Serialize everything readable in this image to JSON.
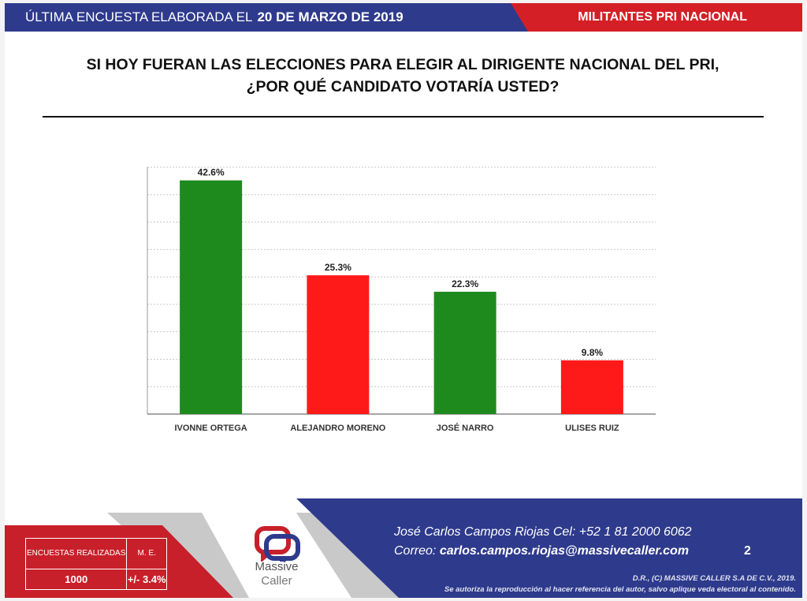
{
  "header": {
    "left_text": "ÚLTIMA ENCUESTA ELABORADA EL",
    "date": "20 DE MARZO DE 2019",
    "right_text": "MILITANTES PRI NACIONAL",
    "colors": {
      "blue": "#2e3a8c",
      "red": "#d41f26"
    }
  },
  "question": {
    "line1": "SI HOY FUERAN LAS ELECCIONES PARA ELEGIR AL DIRIGENTE NACIONAL DEL PRI,",
    "line2": "¿POR QUÉ CANDIDATO VOTARÍA USTED?"
  },
  "chart_data": {
    "type": "bar",
    "categories": [
      "IVONNE ORTEGA",
      "ALEJANDRO MORENO",
      "JOSÉ NARRO",
      "ULISES RUIZ"
    ],
    "values": [
      42.6,
      25.3,
      22.3,
      9.8
    ],
    "value_labels": [
      "42.6%",
      "25.3%",
      "22.3%",
      "9.8%"
    ],
    "colors": [
      "#1e8a1e",
      "#ff1a1a",
      "#1e8a1e",
      "#ff1a1a"
    ],
    "ylim": [
      0,
      45
    ],
    "grid": true,
    "title": "",
    "xlabel": "",
    "ylabel": ""
  },
  "footer": {
    "stats": {
      "surveys_label": "ENCUESTAS REALIZADAS",
      "surveys_value": "1000",
      "me_label": "M. E.",
      "me_value": "+/- 3.4%"
    },
    "logo": {
      "line1": "Massive",
      "line2": "Caller"
    },
    "contact_line1": "José Carlos Campos Riojas Cel: +52 1 81 2000 6062",
    "email_label": "Correo:",
    "email": "carlos.campos.riojas@massivecaller.com",
    "page_number": "2",
    "copyright": "D.R., (C) MASSIVE CALLER S.A DE C.V., 2019.",
    "notice": "Se autoriza la reproducción al hacer referencia del autor, salvo aplique veda electoral al contenido."
  }
}
